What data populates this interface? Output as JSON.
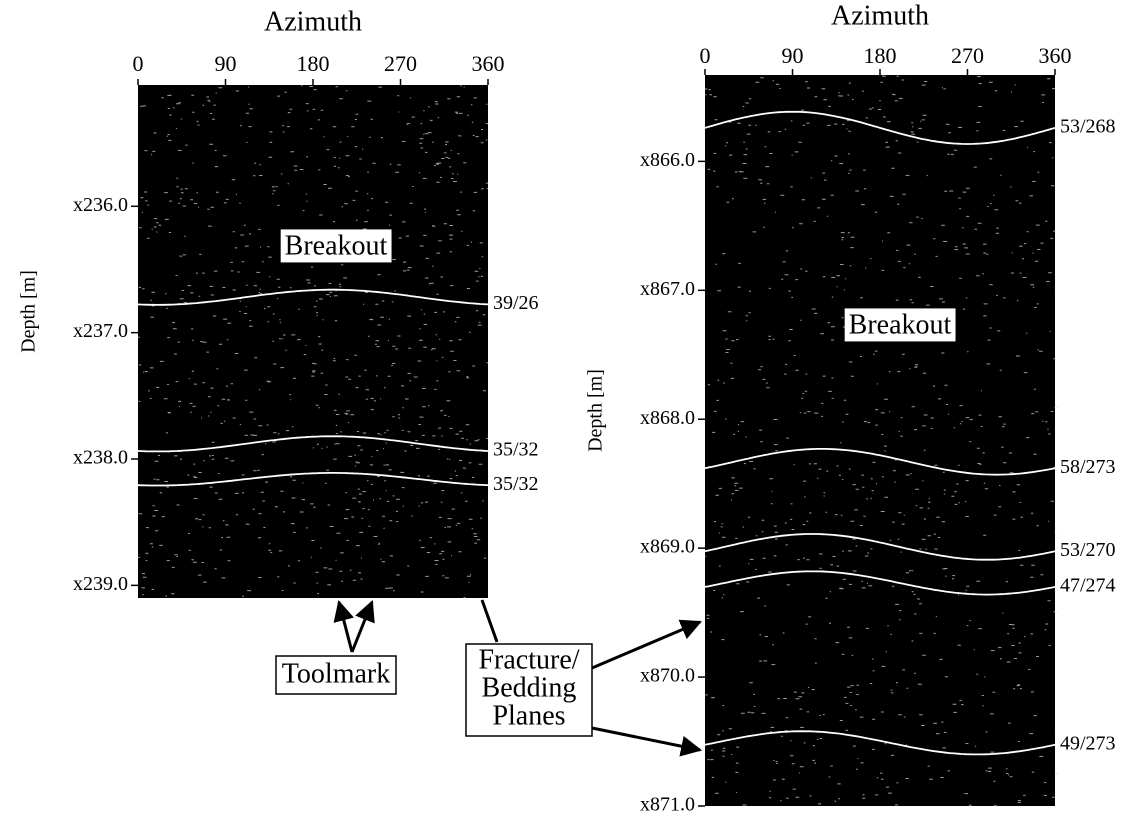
{
  "panels": [
    {
      "title": "Azimuth",
      "y_label": "Depth [m]",
      "xlim": [
        0,
        360
      ],
      "xticks": [
        0,
        90,
        180,
        270,
        360
      ],
      "ylim": [
        235.04,
        239.1
      ],
      "yticks": [
        {
          "value": 236,
          "label": "x236.0"
        },
        {
          "value": 237,
          "label": "x237.0"
        },
        {
          "value": 238,
          "label": "x238.0"
        },
        {
          "value": 239,
          "label": "x239.0"
        }
      ],
      "breakout": "Breakout",
      "sinusoids": [
        {
          "label": "39/26",
          "depth": 236.72,
          "amplitude": 0.06,
          "shallowest_azimuth": 200
        },
        {
          "label": "35/32",
          "depth": 237.88,
          "amplitude": 0.06,
          "shallowest_azimuth": 200
        },
        {
          "label": "35/32",
          "depth": 238.16,
          "amplitude": 0.05,
          "shallowest_azimuth": 200
        }
      ]
    },
    {
      "title": "Azimuth",
      "y_label": "Depth [m]",
      "xlim": [
        0,
        360
      ],
      "xticks": [
        0,
        90,
        180,
        270,
        360
      ],
      "ylim": [
        865.33,
        871.0
      ],
      "yticks": [
        {
          "value": 866,
          "label": "x866.0"
        },
        {
          "value": 867,
          "label": "x867.0"
        },
        {
          "value": 868,
          "label": "x868.0"
        },
        {
          "value": 869,
          "label": "x869.0"
        },
        {
          "value": 870,
          "label": "x870.0"
        },
        {
          "value": 871,
          "label": "x871.0"
        }
      ],
      "breakout": "Breakout",
      "sinusoids": [
        {
          "label": "53/268",
          "depth": 865.74,
          "amplitude": 0.125,
          "shallowest_azimuth": 90
        },
        {
          "label": "58/273",
          "depth": 868.33,
          "amplitude": 0.1,
          "shallowest_azimuth": 120
        },
        {
          "label": "53/270",
          "depth": 868.99,
          "amplitude": 0.1,
          "shallowest_azimuth": 110
        },
        {
          "label": "47/274",
          "depth": 869.27,
          "amplitude": 0.09,
          "shallowest_azimuth": 110
        },
        {
          "label": "49/273",
          "depth": 870.51,
          "amplitude": 0.09,
          "shallowest_azimuth": 100
        }
      ]
    }
  ],
  "annotations": {
    "toolmark": "Toolmark",
    "fracture": [
      "Fracture/",
      "Bedding",
      "Planes"
    ]
  }
}
